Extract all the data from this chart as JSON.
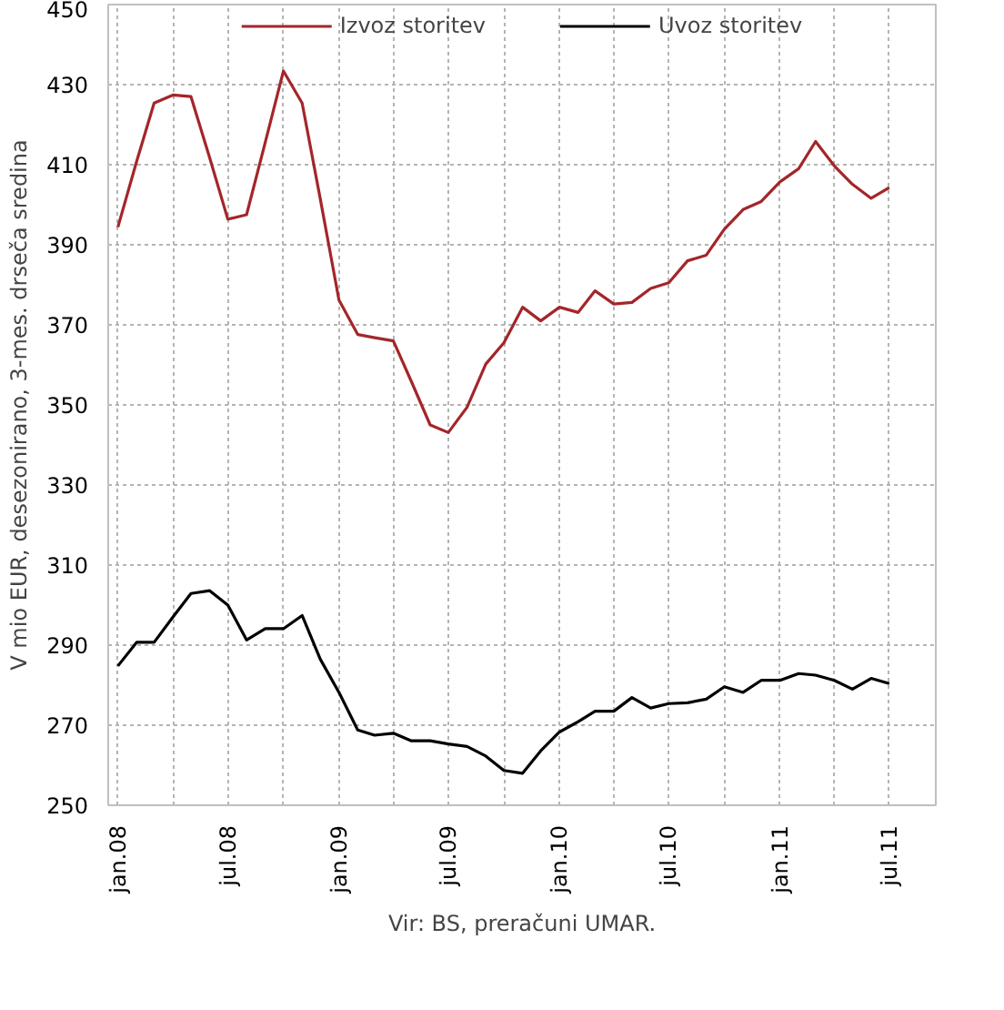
{
  "chart_data": {
    "type": "line",
    "ylabel": "V mio EUR, desezonirano, 3-mes. drseča sredina",
    "annotations": [
      "Vir: BS, preračuni UMAR."
    ],
    "x": [
      "2008-01",
      "2008-02",
      "2008-03",
      "2008-04",
      "2008-05",
      "2008-06",
      "2008-07",
      "2008-08",
      "2008-09",
      "2008-10",
      "2008-11",
      "2008-12",
      "2009-01",
      "2009-02",
      "2009-03",
      "2009-04",
      "2009-05",
      "2009-06",
      "2009-07",
      "2009-08",
      "2009-09",
      "2009-10",
      "2009-11",
      "2009-12",
      "2010-01",
      "2010-02",
      "2010-03",
      "2010-04",
      "2010-05",
      "2010-06",
      "2010-07",
      "2010-08",
      "2010-09",
      "2010-10",
      "2010-11",
      "2010-12",
      "2011-01",
      "2011-02",
      "2011-03",
      "2011-04",
      "2011-05",
      "2011-06",
      "2011-07"
    ],
    "series": [
      {
        "name": "Izvoz storitev",
        "color": "#a3262a",
        "values": [
          394.4,
          410.8,
          425.4,
          427.4,
          427,
          411.7,
          396.4,
          397.5,
          415.6,
          433.4,
          425.4,
          401.5,
          376.2,
          367.6,
          366.8,
          366,
          355.8,
          345,
          343.1,
          349.4,
          360.2,
          365.5,
          374.4,
          371,
          374.4,
          373.1,
          378.5,
          375.2,
          375.6,
          379.1,
          380.5,
          386,
          387.4,
          393.9,
          398.8,
          400.8,
          405.7,
          409,
          415.8,
          409.7,
          405.1,
          401.6,
          404.3
        ]
      },
      {
        "name": "Uvoz storitev",
        "color": "#000000",
        "values": [
          284.8,
          290.7,
          290.7,
          297,
          302.9,
          303.6,
          300,
          291.3,
          294.1,
          294.1,
          297.4,
          286.5,
          278.2,
          268.8,
          267.5,
          268,
          266.1,
          266.1,
          265.3,
          264.7,
          262.3,
          258.7,
          258,
          263.6,
          268.3,
          270.9,
          273.5,
          273.5,
          276.9,
          274.3,
          275.4,
          275.6,
          276.5,
          279.6,
          278.2,
          281.2,
          281.2,
          282.9,
          282.5,
          281.2,
          279,
          281.7,
          280.4
        ]
      }
    ],
    "xlim": [
      "2007-12-16",
      "2011-09-16"
    ],
    "xticks": [
      {
        "value": "2008-01",
        "label": "jan.08"
      },
      {
        "value": "2008-04",
        "label": null
      },
      {
        "value": "2008-07",
        "label": "jul.08"
      },
      {
        "value": "2008-10",
        "label": null
      },
      {
        "value": "2009-01",
        "label": "jan.09"
      },
      {
        "value": "2009-04",
        "label": null
      },
      {
        "value": "2009-07",
        "label": "jul.09"
      },
      {
        "value": "2009-10",
        "label": null
      },
      {
        "value": "2010-01",
        "label": "jan.10"
      },
      {
        "value": "2010-04",
        "label": null
      },
      {
        "value": "2010-07",
        "label": "jul.10"
      },
      {
        "value": "2010-10",
        "label": null
      },
      {
        "value": "2011-01",
        "label": "jan.11"
      },
      {
        "value": "2011-04",
        "label": null
      },
      {
        "value": "2011-07",
        "label": "jul.11"
      }
    ],
    "ylim": [
      250,
      450
    ],
    "yticks": [
      250,
      270,
      290,
      310,
      330,
      350,
      370,
      390,
      410,
      430,
      450
    ],
    "grid": true,
    "legend": "top",
    "marker": "none",
    "line_style": "solid"
  }
}
